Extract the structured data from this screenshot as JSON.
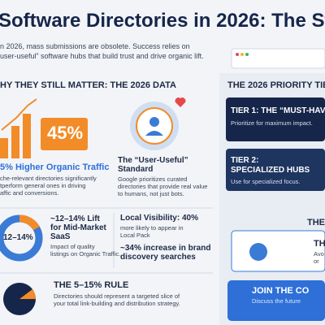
{
  "header": {
    "title": "Software Directories in 2026: The St",
    "intro": [
      "n 2026, mass submissions are obsolete. Success relies on",
      "user-useful” software hubs that build trust and drive organic lift."
    ]
  },
  "left": {
    "heading": "HY THEY STILL MATTER: THE 2026 DATA",
    "traffic": {
      "badge": "45%",
      "title": "5% Higher Organic Traffic",
      "text": [
        "che-relevant directories significantly",
        "tperform general ones in driving",
        "affic and conversions."
      ]
    },
    "standard": {
      "title": [
        "The “User-Useful”",
        "Standard"
      ],
      "text": [
        "Google prioritizes curated",
        "directories that provide real value",
        "to humans, not just bots."
      ]
    },
    "saas": {
      "donut": "12–14%",
      "title": [
        "~12–14% Lift",
        "for Mid-Market",
        "SaaS"
      ],
      "text": [
        "Impact of quality",
        "listings on Organic Traffic."
      ]
    },
    "local": {
      "title": "Local Visibility: 40%",
      "text": [
        "more likely to appear in",
        "Local Pack"
      ],
      "brand": [
        "~34% increase in brand",
        "discovery searches"
      ]
    },
    "rule": {
      "title": "THE 5–15% RULE",
      "text": [
        "Directories should represent a targeted slice of",
        "your total link-building and distribution strategy."
      ]
    }
  },
  "right": {
    "heading": "THE 2026 PRIORITY TIER",
    "tiers": [
      {
        "title": [
          "TIER 1: THE “MUST-HAV"
        ],
        "text": "Prioritize for maximum impact."
      },
      {
        "title": [
          "TIER 2:",
          "SPECIALIZED HUBS"
        ],
        "text": "Use for specialized focus."
      }
    ],
    "third": {
      "heading": "THE",
      "title": "TH",
      "text": [
        "Avo",
        "or"
      ]
    },
    "join": {
      "title": "JOIN THE CO",
      "text": "Discuss the future"
    }
  }
}
